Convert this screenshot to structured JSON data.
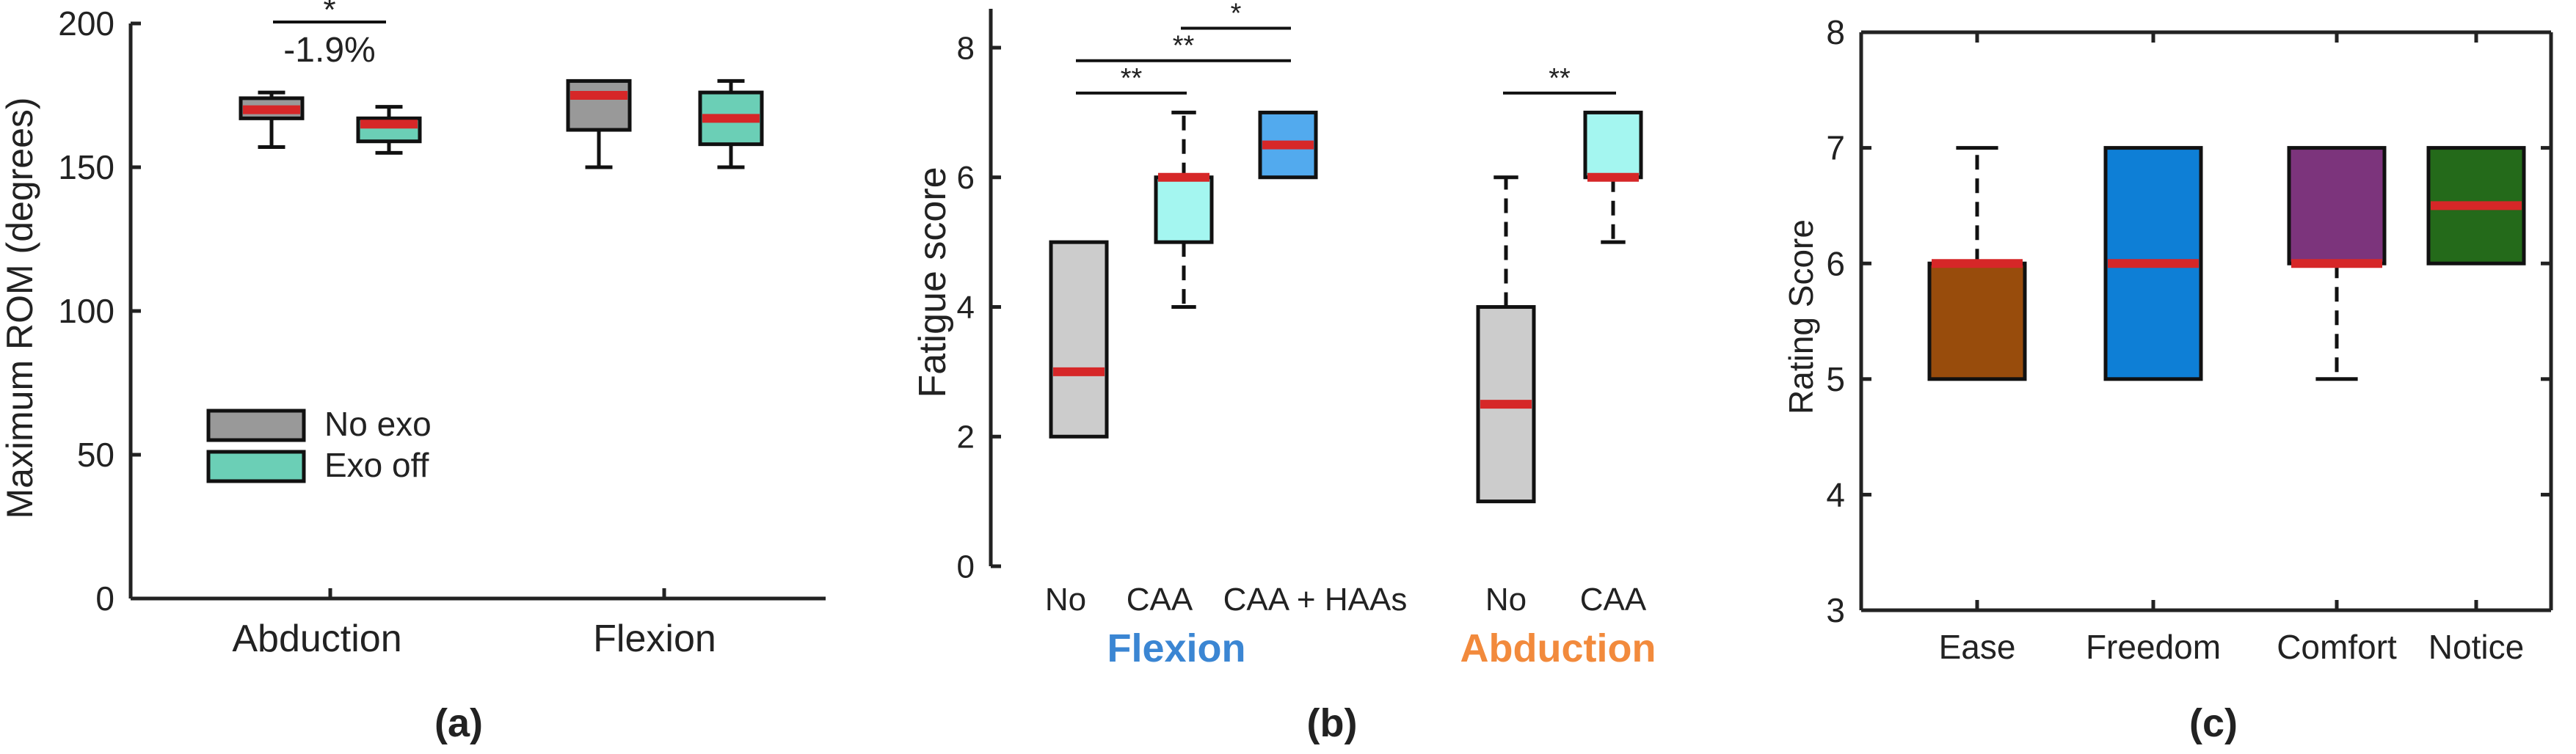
{
  "colors": {
    "median": "#d62728",
    "no_exo": "#999999",
    "exo_off": "#6bcfb6",
    "no": "#cccccc",
    "caa": "#a4f6f0",
    "caa_haas": "#52aaee",
    "flexion_label": "#3b86d3",
    "abduction_label": "#f28a3c",
    "ease": "#984c0c",
    "freedom": "#0e7fd6",
    "comfort": "#7c347c",
    "notice": "#246a1a"
  },
  "chart_data": [
    {
      "type": "box",
      "panel_label": "(a)",
      "ylabel": "Maximum ROM (degrees)",
      "ylim": [
        0,
        200
      ],
      "yticks": [
        "0",
        "50",
        "100",
        "150",
        "200"
      ],
      "categories": [
        "Abduction",
        "Flexion"
      ],
      "legend": {
        "placement": "center-left",
        "entries": [
          "No exo",
          "Exo off"
        ]
      },
      "series": [
        {
          "name": "No exo",
          "color_key": "no_exo",
          "boxes": [
            {
              "category": 0,
              "min": 157,
              "q1": 167,
              "median": 170,
              "q3": 174,
              "max": 176,
              "dashed": false
            },
            {
              "category": 1,
              "min": 150,
              "q1": 163,
              "median": 175,
              "q3": 180,
              "max": 180,
              "dashed": false
            }
          ]
        },
        {
          "name": "Exo off",
          "color_key": "exo_off",
          "boxes": [
            {
              "category": 0,
              "min": 155,
              "q1": 159,
              "median": 165,
              "q3": 167,
              "max": 171,
              "dashed": false
            },
            {
              "category": 1,
              "min": 150,
              "q1": 158,
              "median": 167,
              "q3": 176,
              "max": 180,
              "dashed": false
            }
          ]
        }
      ],
      "annotations": [
        {
          "stars": "*",
          "text": "-1.9%"
        }
      ]
    },
    {
      "type": "box",
      "panel_label": "(b)",
      "ylabel": "Fatigue score",
      "ylim": [
        0,
        8.6
      ],
      "yticks": [
        "0",
        "2",
        "4",
        "6",
        "8"
      ],
      "categories": [
        "No",
        "CAA",
        "CAA + HAAs",
        "No",
        "CAA"
      ],
      "groups": [
        "Flexion",
        "Abduction"
      ],
      "boxes": [
        {
          "label": "No",
          "color_key": "no",
          "min": 2,
          "q1": 2,
          "median": 3,
          "q3": 5,
          "max": 5
        },
        {
          "label": "CAA",
          "color_key": "caa",
          "min": 4,
          "q1": 5,
          "median": 6,
          "q3": 6,
          "max": 7
        },
        {
          "label": "CAA + HAAs",
          "color_key": "caa_haas",
          "min": 6,
          "q1": 6,
          "median": 6.5,
          "q3": 7,
          "max": 7
        },
        {
          "label": "No",
          "color_key": "no",
          "min": 1,
          "q1": 1,
          "median": 2.5,
          "q3": 4,
          "max": 6
        },
        {
          "label": "CAA",
          "color_key": "caa",
          "min": 5,
          "q1": 6,
          "median": 6,
          "q3": 7,
          "max": 7
        }
      ],
      "significance": [
        {
          "from": 0,
          "to": 1,
          "stars": "**",
          "y": 7.3
        },
        {
          "from": 0,
          "to": 2,
          "stars": "**",
          "y": 7.8
        },
        {
          "from": 1,
          "to": 2,
          "stars": "*",
          "y": 8.3
        },
        {
          "from": 3,
          "to": 4,
          "stars": "**",
          "y": 7.3
        }
      ]
    },
    {
      "type": "box",
      "panel_label": "(c)",
      "ylabel": "Rating Score",
      "ylim": [
        3,
        8
      ],
      "yticks": [
        "3",
        "4",
        "5",
        "6",
        "7",
        "8"
      ],
      "categories": [
        "Ease",
        "Freedom",
        "Comfort",
        "Notice"
      ],
      "boxes": [
        {
          "label": "Ease",
          "color_key": "ease",
          "min": 5,
          "q1": 5,
          "median": 6,
          "q3": 6,
          "max": 7
        },
        {
          "label": "Freedom",
          "color_key": "freedom",
          "min": 5,
          "q1": 5,
          "median": 6,
          "q3": 7,
          "max": 7
        },
        {
          "label": "Comfort",
          "color_key": "comfort",
          "min": 5,
          "q1": 6,
          "median": 6,
          "q3": 7,
          "max": 7
        },
        {
          "label": "Notice",
          "color_key": "notice",
          "min": 6,
          "q1": 6,
          "median": 6.5,
          "q3": 7,
          "max": 7
        }
      ]
    }
  ]
}
